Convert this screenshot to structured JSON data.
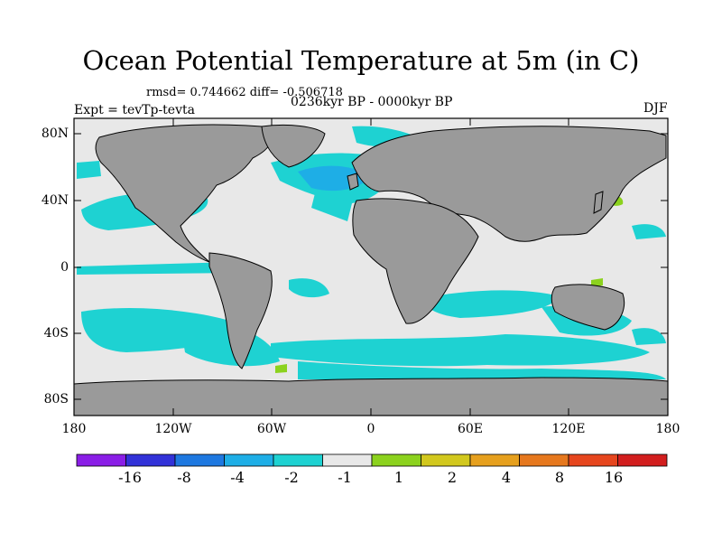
{
  "title": "Ocean Potential Temperature at 5m (in C)",
  "stats": "rmsd= 0.744662  diff= -0.506718",
  "period": "0236kyr BP - 0000kyr BP",
  "expt": "Expt = tevTp-tevta",
  "season": "DJF",
  "map": {
    "lat_ticks": [
      "80N",
      "40N",
      "0",
      "40S",
      "80S"
    ],
    "lon_ticks": [
      "180",
      "120W",
      "60W",
      "0",
      "60E",
      "120E",
      "180"
    ],
    "land_color": "#9a9a9a",
    "ocean_color": "#e8e8e8"
  },
  "colorbar": {
    "colors": [
      "#8a1ee6",
      "#3232d8",
      "#1e78e0",
      "#1eaee6",
      "#1ed2d2",
      "#e8e8e8",
      "#8cd21e",
      "#d2c81e",
      "#e6a01e",
      "#e6781e",
      "#e6461e",
      "#d21e1e"
    ],
    "labels": [
      "-16",
      "-8",
      "-4",
      "-2",
      "-1",
      "1",
      "2",
      "4",
      "8",
      "16"
    ]
  }
}
